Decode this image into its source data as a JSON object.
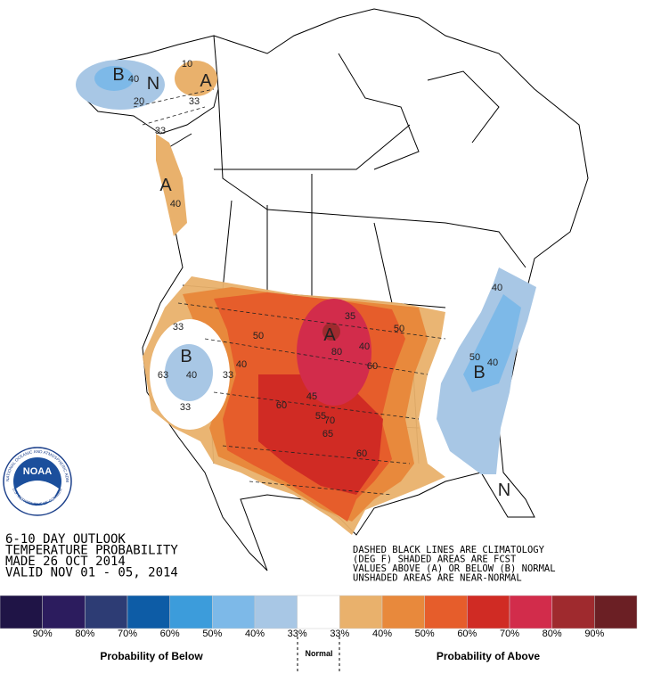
{
  "header": {
    "lines": [
      "6-10 DAY OUTLOOK",
      "TEMPERATURE PROBABILITY",
      "MADE  26 OCT 2014",
      "VALID  NOV 01 - 05, 2014"
    ]
  },
  "notes": [
    "DASHED BLACK LINES ARE CLIMATOLOGY",
    "(DEG F) SHADED AREAS ARE FCST",
    "VALUES ABOVE (A) OR BELOW (B) NORMAL",
    "UNSHADED AREAS ARE NEAR-NORMAL"
  ],
  "logo": {
    "name": "NOAA",
    "ring_top": "NATIONAL OCEANIC AND ATMOSPHERIC ADMINISTRATION",
    "ring_bottom": "U.S. DEPARTMENT OF COMMERCE"
  },
  "map_labels": [
    "B",
    "40",
    "N",
    "10",
    "A",
    "33",
    "20",
    "33",
    "A",
    "40",
    "33",
    "B",
    "40",
    "33",
    "63",
    "50",
    "40",
    "33",
    "A",
    "35",
    "80",
    "40",
    "60",
    "50",
    "45",
    "60",
    "70",
    "55",
    "65",
    "60",
    "50",
    "40",
    "B",
    "40",
    "N"
  ],
  "legend": {
    "colors": [
      "#1f1446",
      "#2c1c5e",
      "#2d3c74",
      "#0d5ca6",
      "#3c9cdb",
      "#7db9e8",
      "#a8c7e5",
      "#ffffff",
      "#e9b16c",
      "#e8893c",
      "#e65d2b",
      "#d02b24",
      "#d22c4b",
      "#9f2a2e",
      "#6b1f24"
    ],
    "labels": [
      "90%",
      "80%",
      "70%",
      "60%",
      "50%",
      "40%",
      "33%",
      "33%",
      "40%",
      "50%",
      "60%",
      "70%",
      "80%",
      "90%"
    ],
    "below": "Probability of Below",
    "normal": "Normal",
    "above": "Probability of Above"
  }
}
